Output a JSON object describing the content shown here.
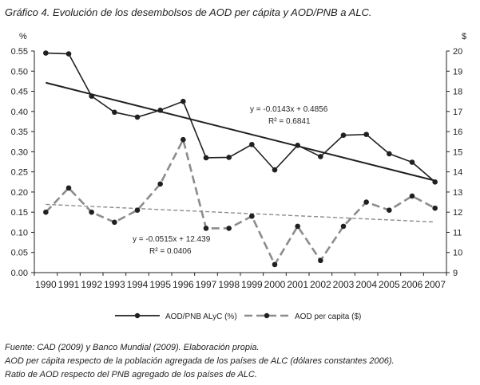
{
  "title": "Gráfico 4. Evolución de los desembolsos de AOD per cápita y AOD/PNB a ALC.",
  "footnotes": [
    "Fuente: CAD (2009) y Banco Mundial (2009). Elaboración propia.",
    "AOD per cápita respecto de la población agregada de los países de ALC (dólares constantes 2006).",
    "Ratio de AOD respecto del PNB agregado de los países de ALC."
  ],
  "colors": {
    "series_gnb": "#231f20",
    "series_pc": "#8c8c8c",
    "axis": "#231f20"
  },
  "chart_data": {
    "type": "line",
    "categories": [
      "1990",
      "1991",
      "1992",
      "1993",
      "1994",
      "1995",
      "1996",
      "1997",
      "1998",
      "1999",
      "2000",
      "2001",
      "2002",
      "2003",
      "2004",
      "2005",
      "2006",
      "2007"
    ],
    "left_axis": {
      "unit_label": "%",
      "ylim": [
        0,
        0.55
      ],
      "ticks": [
        "0.00",
        "0.05",
        "0.10",
        "0.15",
        "0.20",
        "0.25",
        "0.30",
        "0.35",
        "0.40",
        "0.45",
        "0.50",
        "0.55"
      ]
    },
    "right_axis": {
      "unit_label": "$",
      "ylim": [
        9,
        20
      ],
      "ticks": [
        "9",
        "10",
        "11",
        "12",
        "13",
        "14",
        "15",
        "16",
        "17",
        "18",
        "19",
        "20"
      ]
    },
    "series": [
      {
        "name": "AOD/PNB ALyC (%)",
        "axis": "left",
        "style": "solid",
        "values": [
          0.545,
          0.543,
          0.438,
          0.398,
          0.386,
          0.403,
          0.425,
          0.285,
          0.286,
          0.318,
          0.255,
          0.316,
          0.288,
          0.341,
          0.343,
          0.295,
          0.274,
          0.225
        ],
        "trendline": {
          "slope": -0.0143,
          "intercept": 0.4856,
          "equation": "y = -0.0143x + 0.4856",
          "r2": "R² = 0.6841"
        }
      },
      {
        "name": "AOD per capita ($)",
        "axis": "right",
        "style": "dashed",
        "values": [
          12.0,
          13.2,
          12.0,
          11.5,
          12.1,
          13.4,
          15.6,
          11.2,
          11.2,
          11.8,
          9.4,
          11.3,
          9.6,
          11.3,
          12.5,
          12.1,
          12.8,
          12.2
        ],
        "trendline": {
          "slope": -0.0515,
          "intercept": 12.439,
          "equation": "y = -0.0515x + 12.439",
          "r2": "R² = 0.0406"
        }
      }
    ]
  }
}
